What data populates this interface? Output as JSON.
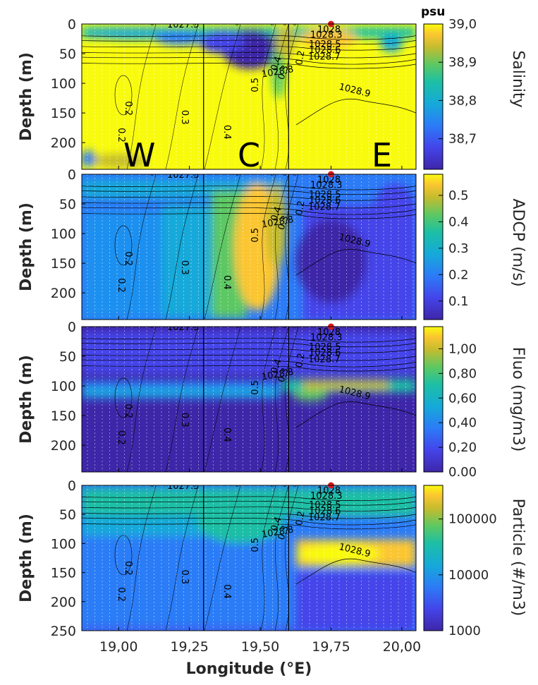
{
  "chart_data": {
    "type": "heatmap",
    "xlabel": "Longitude (°E)",
    "x_ticks": [
      "19,00",
      "19,25",
      "19,50",
      "19,75",
      "20,00"
    ],
    "x_tick_values": [
      19.0,
      19.25,
      19.5,
      19.75,
      20.0
    ],
    "xlim": [
      18.87,
      20.05
    ],
    "section_boundaries_lon": [
      19.3,
      19.6
    ],
    "station_marker_lon": 19.75,
    "station_marker_color": "#d7191c",
    "regions": [
      "W",
      "C",
      "E"
    ],
    "isopycnals": {
      "labels": [
        "1027.5",
        "1028",
        "1028.3",
        "1028.5",
        "1028.6",
        "1028.7",
        "1028.8",
        "1028.9"
      ]
    },
    "velocity_contours": {
      "labels": [
        "0.2",
        "0.3",
        "0.4",
        "0.5",
        "0.4",
        "0.3",
        "0.2"
      ]
    },
    "panels": [
      {
        "variable": "Salinity",
        "ylabel": "Depth (m)",
        "y_ticks": [
          "0",
          "50",
          "100",
          "150",
          "200"
        ],
        "ylim": [
          0,
          245
        ],
        "colorbar_label": "Salinity",
        "colorbar_unit": "psu",
        "colorbar_ticks": [
          "39,0",
          "38,9",
          "38,8",
          "38,7"
        ],
        "colorbar_tick_values": [
          39.0,
          38.9,
          38.8,
          38.7
        ],
        "color_range": [
          38.62,
          39.0
        ]
      },
      {
        "variable": "ADCP",
        "ylabel": "Depth (m)",
        "y_ticks": [
          "0",
          "50",
          "100",
          "150",
          "200"
        ],
        "ylim": [
          0,
          245
        ],
        "colorbar_label": "ADCP (m/s)",
        "colorbar_ticks": [
          "0.5",
          "0.4",
          "0.3",
          "0.2",
          "0.1"
        ],
        "colorbar_tick_values": [
          0.5,
          0.4,
          0.3,
          0.2,
          0.1
        ],
        "color_range": [
          0.03,
          0.58
        ]
      },
      {
        "variable": "Fluo",
        "ylabel": "Depth (m)",
        "y_ticks": [
          "0",
          "50",
          "100",
          "150",
          "200"
        ],
        "ylim": [
          0,
          245
        ],
        "colorbar_label": "Fluo (mg/m3)",
        "colorbar_ticks": [
          "1,00",
          "0,80",
          "0,60",
          "0,40",
          "0,20",
          "0.00"
        ],
        "colorbar_tick_values": [
          1.0,
          0.8,
          0.6,
          0.4,
          0.2,
          0.0
        ],
        "color_range": [
          0.0,
          1.18
        ]
      },
      {
        "variable": "Particle",
        "ylabel": "Depth (m)",
        "y_ticks": [
          "0",
          "50",
          "100",
          "150",
          "200",
          "250"
        ],
        "ylim": [
          0,
          250
        ],
        "colorbar_label": "Particle (#/m3)",
        "colorbar_ticks": [
          "100000",
          "10000",
          "1000"
        ],
        "colorbar_tick_values": [
          100000,
          10000,
          1000
        ],
        "color_scale": "log",
        "color_range": [
          1000,
          400000
        ]
      }
    ]
  }
}
